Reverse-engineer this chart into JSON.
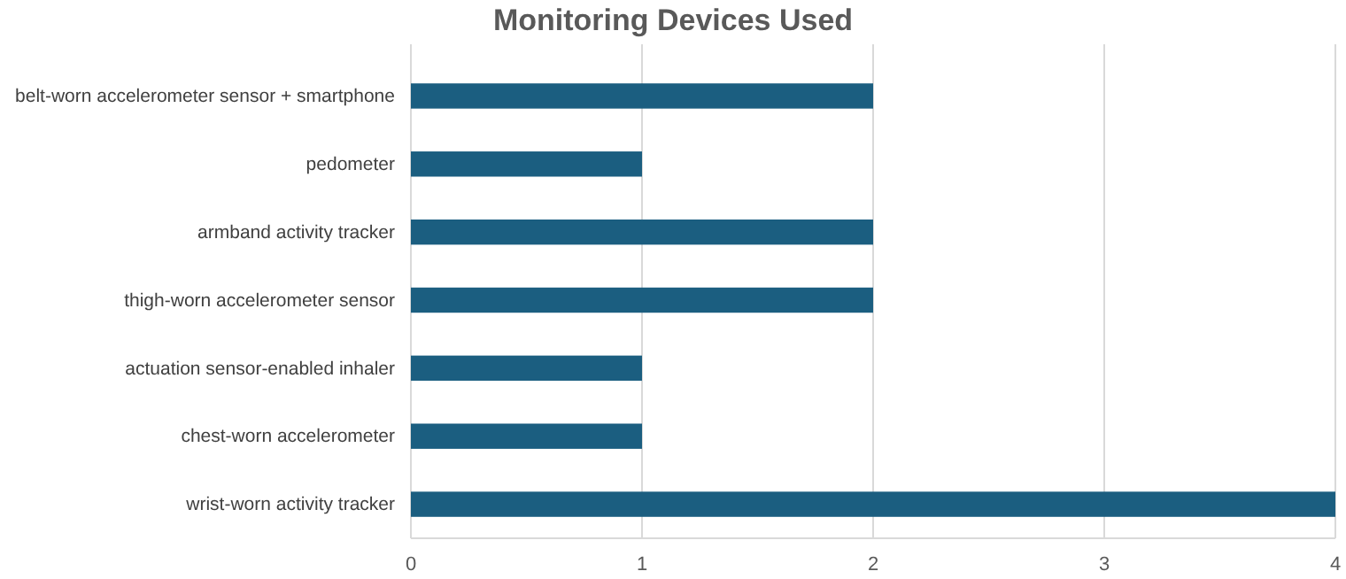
{
  "chart_data": {
    "type": "bar",
    "orientation": "horizontal",
    "title": "Monitoring Devices Used",
    "categories": [
      "belt-worn accelerometer sensor + smartphone",
      "pedometer",
      "armband activity tracker",
      "thigh-worn accelerometer sensor",
      "actuation sensor-enabled inhaler",
      "chest-worn accelerometer",
      "wrist-worn activity tracker"
    ],
    "values": [
      2,
      1,
      2,
      2,
      1,
      1,
      4
    ],
    "color": "#1b5e80",
    "xlim": [
      0,
      4
    ],
    "xticks": [
      0,
      1,
      2,
      3,
      4
    ],
    "grid": "x"
  }
}
